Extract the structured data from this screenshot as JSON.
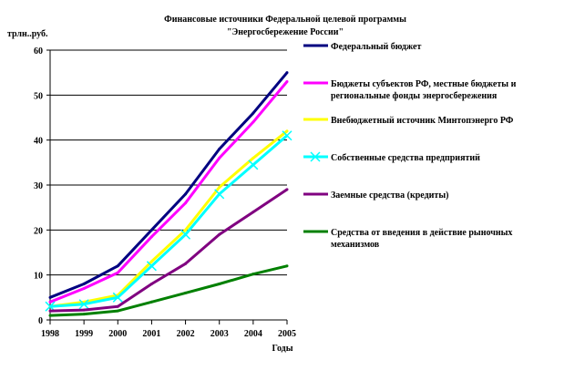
{
  "chart_data": {
    "type": "line",
    "title": [
      "Финансовые источники Федеральной целевой программы",
      "\"Энергосбережение России\""
    ],
    "ylabel": "трлн..руб.",
    "xlabel": "Годы",
    "x": [
      "1998",
      "1999",
      "2000",
      "2001",
      "2002",
      "2003",
      "2004",
      "2005"
    ],
    "ylim": [
      0,
      60
    ],
    "yticks": [
      "0",
      "10",
      "20",
      "30",
      "40",
      "50",
      "60"
    ],
    "grid": "horizontal",
    "legend_position": "right",
    "series": [
      {
        "name": [
          "Федеральный бюджет"
        ],
        "color": "#000080",
        "marker": "none",
        "values": [
          5,
          8,
          12,
          20,
          28,
          38,
          46,
          55
        ]
      },
      {
        "name": [
          "Бюджеты субъектов РФ, местные бюджеты и",
          "региональные фонды энергосбережения"
        ],
        "color": "#ff00ff",
        "marker": "none",
        "values": [
          4,
          7,
          10.5,
          18.5,
          26,
          36,
          44,
          53
        ]
      },
      {
        "name": [
          "Внебюджетный источник Минтопэнерго РФ"
        ],
        "color": "#ffff00",
        "marker": "none",
        "values": [
          3,
          4,
          5.5,
          13,
          20,
          29.5,
          36,
          42
        ]
      },
      {
        "name": [
          "Собственные средства предприятий"
        ],
        "color": "#00ffff",
        "marker": "x",
        "values": [
          3,
          3.5,
          5,
          12,
          19,
          28,
          34.5,
          41
        ]
      },
      {
        "name": [
          "Заемные средства (кредиты)"
        ],
        "color": "#800080",
        "marker": "none",
        "values": [
          2,
          2.2,
          3,
          8,
          12.5,
          19,
          24,
          29
        ]
      },
      {
        "name": [
          "Средства от введения в действие рыночных",
          "механизмов"
        ],
        "color": "#008000",
        "marker": "none",
        "values": [
          1,
          1.3,
          2,
          4,
          6,
          8,
          10.2,
          12
        ]
      }
    ]
  }
}
